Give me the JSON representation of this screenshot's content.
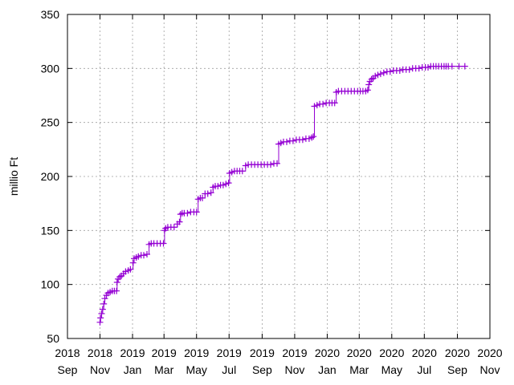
{
  "chart_data": {
    "type": "line",
    "title": "",
    "xlabel": "",
    "ylabel": "millio Ft",
    "ylim": [
      50,
      350
    ],
    "yticks": [
      50,
      100,
      150,
      200,
      250,
      300,
      350
    ],
    "xlim": [
      "2018-09-01",
      "2020-11-01"
    ],
    "xticks": [
      {
        "date": "2018-09-01",
        "year": "2018",
        "month": "Sep"
      },
      {
        "date": "2018-11-01",
        "year": "2018",
        "month": "Nov"
      },
      {
        "date": "2019-01-01",
        "year": "2019",
        "month": "Jan"
      },
      {
        "date": "2019-03-01",
        "year": "2019",
        "month": "Mar"
      },
      {
        "date": "2019-05-01",
        "year": "2019",
        "month": "May"
      },
      {
        "date": "2019-07-01",
        "year": "2019",
        "month": "Jul"
      },
      {
        "date": "2019-09-01",
        "year": "2019",
        "month": "Sep"
      },
      {
        "date": "2019-11-01",
        "year": "2019",
        "month": "Nov"
      },
      {
        "date": "2020-01-01",
        "year": "2020",
        "month": "Jan"
      },
      {
        "date": "2020-03-01",
        "year": "2020",
        "month": "Mar"
      },
      {
        "date": "2020-05-01",
        "year": "2020",
        "month": "May"
      },
      {
        "date": "2020-07-01",
        "year": "2020",
        "month": "Jul"
      },
      {
        "date": "2020-09-01",
        "year": "2020",
        "month": "Sep"
      },
      {
        "date": "2020-11-01",
        "year": "2020",
        "month": "Nov"
      }
    ],
    "grid": true,
    "legend": "none",
    "series": [
      {
        "color": "#9400d3",
        "marker": "plus",
        "points": [
          [
            "2018-11-01",
            65
          ],
          [
            "2018-11-02",
            69
          ],
          [
            "2018-11-04",
            73
          ],
          [
            "2018-11-06",
            77
          ],
          [
            "2018-11-08",
            82
          ],
          [
            "2018-11-10",
            87
          ],
          [
            "2018-11-13",
            90
          ],
          [
            "2018-11-16",
            92
          ],
          [
            "2018-11-20",
            93
          ],
          [
            "2018-11-24",
            94
          ],
          [
            "2018-11-28",
            94
          ],
          [
            "2018-12-02",
            94
          ],
          [
            "2018-12-03",
            102
          ],
          [
            "2018-12-05",
            105
          ],
          [
            "2018-12-08",
            107
          ],
          [
            "2018-12-11",
            108
          ],
          [
            "2018-12-15",
            110
          ],
          [
            "2018-12-19",
            112
          ],
          [
            "2018-12-24",
            113
          ],
          [
            "2018-12-28",
            114
          ],
          [
            "2019-01-02",
            120
          ],
          [
            "2019-01-04",
            124
          ],
          [
            "2019-01-08",
            125
          ],
          [
            "2019-01-12",
            126
          ],
          [
            "2019-01-17",
            127
          ],
          [
            "2019-01-22",
            127
          ],
          [
            "2019-01-28",
            128
          ],
          [
            "2019-02-01",
            137
          ],
          [
            "2019-02-05",
            138
          ],
          [
            "2019-02-10",
            138
          ],
          [
            "2019-02-16",
            138
          ],
          [
            "2019-02-22",
            138
          ],
          [
            "2019-02-28",
            138
          ],
          [
            "2019-03-02",
            150
          ],
          [
            "2019-03-04",
            152
          ],
          [
            "2019-03-08",
            153
          ],
          [
            "2019-03-14",
            153
          ],
          [
            "2019-03-20",
            153
          ],
          [
            "2019-03-26",
            156
          ],
          [
            "2019-03-30",
            158
          ],
          [
            "2019-04-01",
            165
          ],
          [
            "2019-04-04",
            166
          ],
          [
            "2019-04-08",
            166
          ],
          [
            "2019-04-14",
            166
          ],
          [
            "2019-04-20",
            167
          ],
          [
            "2019-04-26",
            167
          ],
          [
            "2019-05-01",
            167
          ],
          [
            "2019-05-04",
            179
          ],
          [
            "2019-05-08",
            180
          ],
          [
            "2019-05-12",
            180
          ],
          [
            "2019-05-17",
            184
          ],
          [
            "2019-05-22",
            184
          ],
          [
            "2019-05-28",
            185
          ],
          [
            "2019-06-01",
            190
          ],
          [
            "2019-06-05",
            191
          ],
          [
            "2019-06-10",
            191
          ],
          [
            "2019-06-15",
            192
          ],
          [
            "2019-06-20",
            192
          ],
          [
            "2019-06-25",
            193
          ],
          [
            "2019-06-30",
            194
          ],
          [
            "2019-07-02",
            203
          ],
          [
            "2019-07-06",
            204
          ],
          [
            "2019-07-11",
            205
          ],
          [
            "2019-07-16",
            205
          ],
          [
            "2019-07-21",
            205
          ],
          [
            "2019-07-26",
            205
          ],
          [
            "2019-08-01",
            210
          ],
          [
            "2019-08-06",
            211
          ],
          [
            "2019-08-12",
            211
          ],
          [
            "2019-08-18",
            211
          ],
          [
            "2019-08-24",
            211
          ],
          [
            "2019-08-30",
            211
          ],
          [
            "2019-09-05",
            211
          ],
          [
            "2019-09-11",
            211
          ],
          [
            "2019-09-17",
            211
          ],
          [
            "2019-09-23",
            212
          ],
          [
            "2019-09-29",
            212
          ],
          [
            "2019-10-02",
            230
          ],
          [
            "2019-10-06",
            231
          ],
          [
            "2019-10-11",
            232
          ],
          [
            "2019-10-17",
            232
          ],
          [
            "2019-10-23",
            233
          ],
          [
            "2019-10-29",
            233
          ],
          [
            "2019-11-04",
            234
          ],
          [
            "2019-11-10",
            234
          ],
          [
            "2019-11-16",
            234
          ],
          [
            "2019-11-22",
            235
          ],
          [
            "2019-11-28",
            235
          ],
          [
            "2019-12-03",
            236
          ],
          [
            "2019-12-06",
            237
          ],
          [
            "2019-12-08",
            265
          ],
          [
            "2019-12-13",
            266
          ],
          [
            "2019-12-18",
            267
          ],
          [
            "2019-12-24",
            267
          ],
          [
            "2019-12-30",
            268
          ],
          [
            "2020-01-05",
            268
          ],
          [
            "2020-01-10",
            268
          ],
          [
            "2020-01-15",
            268
          ],
          [
            "2020-01-18",
            278
          ],
          [
            "2020-01-22",
            279
          ],
          [
            "2020-01-28",
            279
          ],
          [
            "2020-02-03",
            279
          ],
          [
            "2020-02-09",
            279
          ],
          [
            "2020-02-15",
            279
          ],
          [
            "2020-02-21",
            279
          ],
          [
            "2020-02-27",
            279
          ],
          [
            "2020-03-03",
            279
          ],
          [
            "2020-03-08",
            279
          ],
          [
            "2020-03-13",
            279
          ],
          [
            "2020-03-17",
            280
          ],
          [
            "2020-03-19",
            285
          ],
          [
            "2020-03-21",
            288
          ],
          [
            "2020-03-24",
            290
          ],
          [
            "2020-03-27",
            291
          ],
          [
            "2020-03-31",
            293
          ],
          [
            "2020-04-05",
            294
          ],
          [
            "2020-04-10",
            295
          ],
          [
            "2020-04-16",
            296
          ],
          [
            "2020-04-22",
            297
          ],
          [
            "2020-04-28",
            297
          ],
          [
            "2020-05-04",
            298
          ],
          [
            "2020-05-10",
            298
          ],
          [
            "2020-05-16",
            298
          ],
          [
            "2020-05-22",
            299
          ],
          [
            "2020-05-28",
            299
          ],
          [
            "2020-06-03",
            299
          ],
          [
            "2020-06-09",
            300
          ],
          [
            "2020-06-15",
            300
          ],
          [
            "2020-06-21",
            300
          ],
          [
            "2020-06-27",
            301
          ],
          [
            "2020-07-03",
            301
          ],
          [
            "2020-07-08",
            301
          ],
          [
            "2020-07-13",
            302
          ],
          [
            "2020-07-18",
            302
          ],
          [
            "2020-07-23",
            302
          ],
          [
            "2020-07-28",
            302
          ],
          [
            "2020-08-02",
            302
          ],
          [
            "2020-08-07",
            302
          ],
          [
            "2020-08-11",
            302
          ],
          [
            "2020-08-15",
            302
          ],
          [
            "2020-08-22",
            302
          ],
          [
            "2020-09-04",
            302
          ],
          [
            "2020-09-15",
            302
          ]
        ]
      }
    ]
  }
}
